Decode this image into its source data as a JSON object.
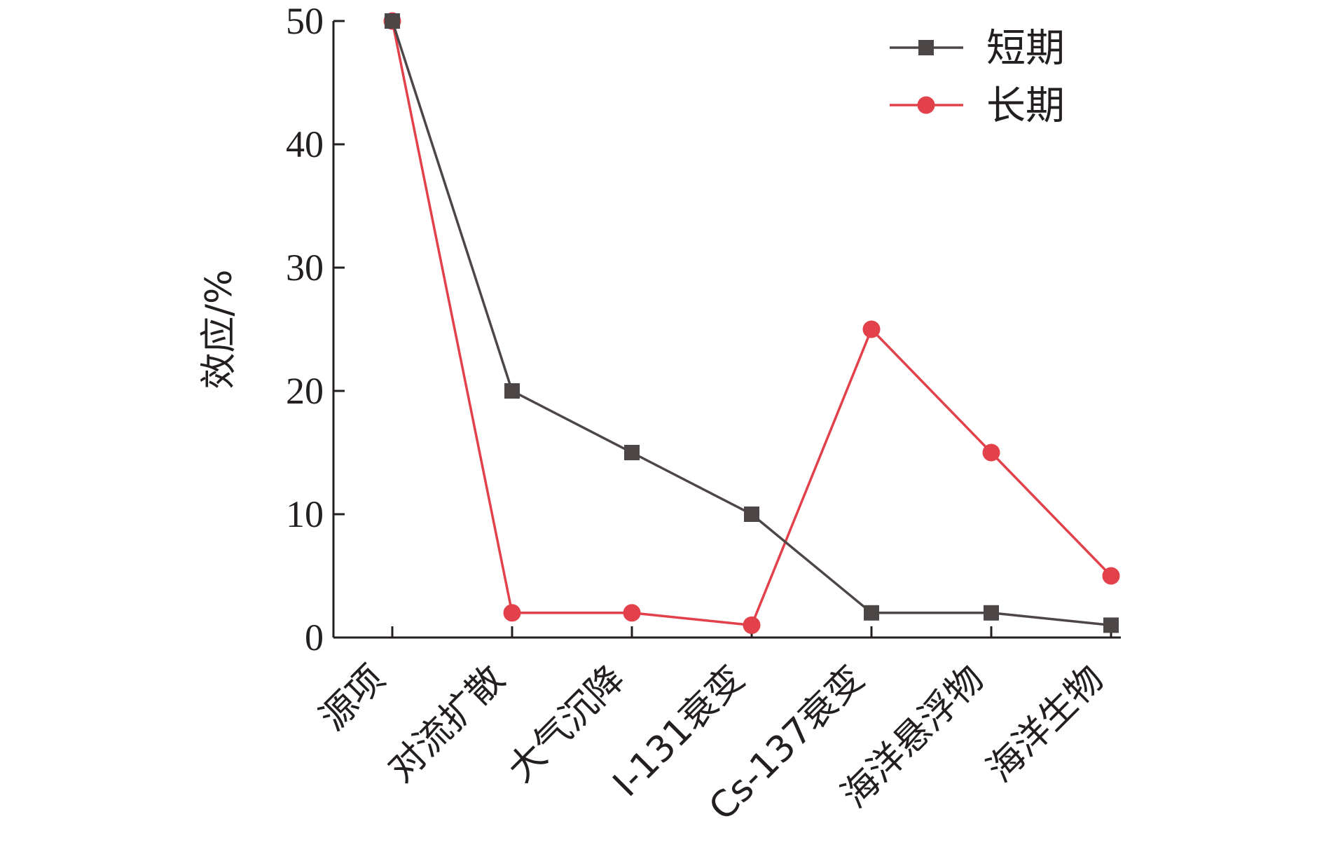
{
  "chart_data": {
    "type": "line",
    "title": "",
    "xlabel": "",
    "ylabel": "效应/%",
    "categories": [
      "源项",
      "对流扩散",
      "大气沉降",
      "I-131衰变",
      "Cs-137衰变",
      "海洋悬浮物",
      "海洋生物"
    ],
    "ylim": [
      0,
      50
    ],
    "yticks": [
      0,
      10,
      20,
      30,
      40,
      50
    ],
    "grid": false,
    "legend": "top-right",
    "series": [
      {
        "name": "短期",
        "color": "#4d4646",
        "marker": "square",
        "values": [
          50,
          20,
          15,
          10,
          2,
          2,
          1
        ]
      },
      {
        "name": "长期",
        "color": "#e2404a",
        "marker": "circle",
        "values": [
          50,
          2,
          2,
          1,
          25,
          15,
          5
        ]
      }
    ]
  }
}
